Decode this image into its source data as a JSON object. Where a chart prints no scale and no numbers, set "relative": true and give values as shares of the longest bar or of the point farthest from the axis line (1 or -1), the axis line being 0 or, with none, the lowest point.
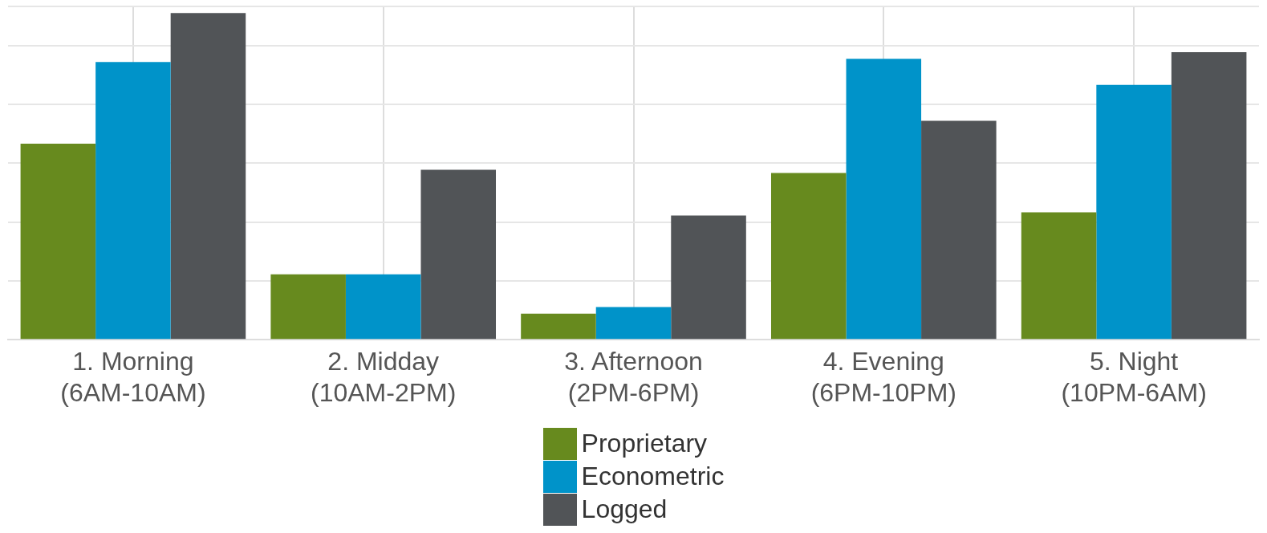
{
  "chart_data": {
    "type": "bar",
    "relative": true,
    "grid": true,
    "legend": "bottom",
    "categories": [
      "1. Morning (6AM-10AM)",
      "2. Midday (10AM-2PM)",
      "3. Afternoon (2PM-6PM)",
      "4. Evening (6PM-10PM)",
      "5. Night (10PM-6AM)"
    ],
    "series": [
      {
        "name": "Proprietary",
        "color": "#678a1e",
        "values": [
          0.6,
          0.2,
          0.08,
          0.51,
          0.39
        ]
      },
      {
        "name": "Econometric",
        "color": "#0093c9",
        "values": [
          0.85,
          0.2,
          0.1,
          0.86,
          0.78
        ]
      },
      {
        "name": "Logged",
        "color": "#515457",
        "values": [
          1,
          0.52,
          0.38,
          0.67,
          0.88
        ]
      }
    ]
  }
}
